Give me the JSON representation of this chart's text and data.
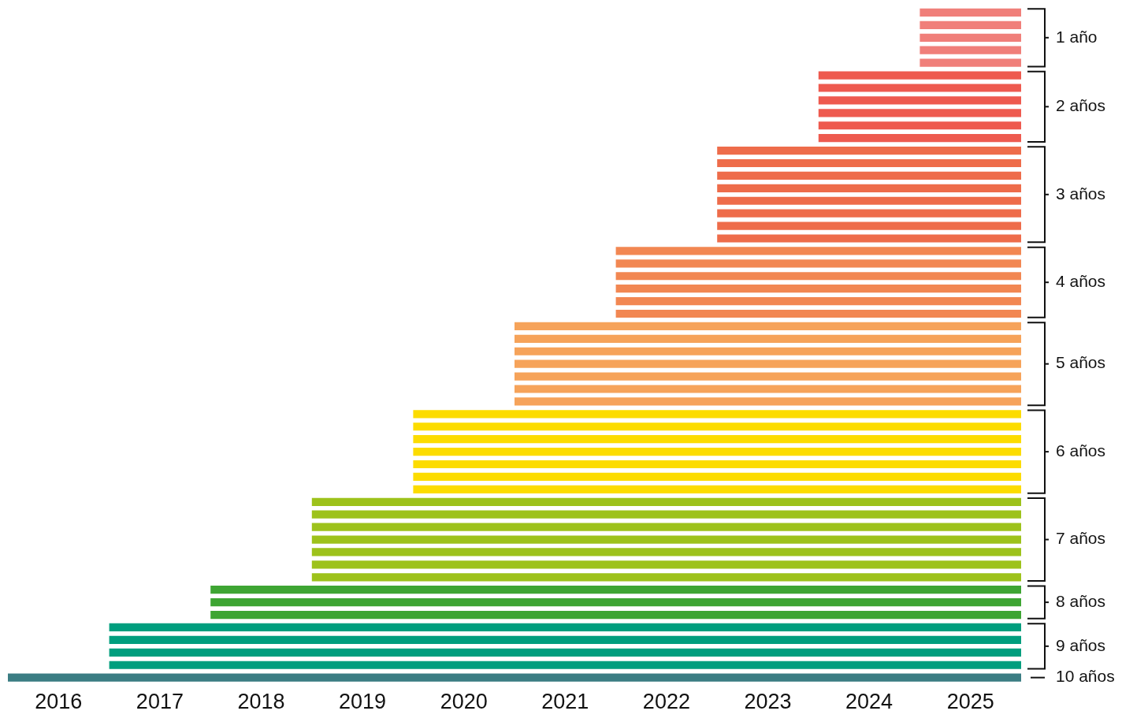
{
  "chart_data": {
    "type": "bar",
    "orientation": "horizontal",
    "tick_labels": "x",
    "legend": false,
    "categories": [
      null,
      null,
      null,
      null,
      null,
      null,
      null,
      null,
      null,
      null,
      null,
      null,
      null,
      null,
      null,
      null,
      null,
      null,
      null,
      null,
      null,
      null,
      null,
      null,
      null,
      null,
      null,
      null,
      null,
      null,
      null,
      null,
      null,
      null,
      null,
      null,
      null,
      null,
      null,
      null,
      null,
      null,
      null,
      null,
      null,
      null,
      null,
      null,
      null,
      null,
      null,
      null,
      null,
      null
    ],
    "base": [
      2025,
      2025,
      2025,
      2025,
      2025,
      2024,
      2024,
      2024,
      2024,
      2024,
      2024,
      2023,
      2023,
      2023,
      2023,
      2023,
      2023,
      2023,
      2023,
      2022,
      2022,
      2022,
      2022,
      2022,
      2022,
      2021,
      2021,
      2021,
      2021,
      2021,
      2021,
      2021,
      2020,
      2020,
      2020,
      2020,
      2020,
      2020,
      2020,
      2019,
      2019,
      2019,
      2019,
      2019,
      2019,
      2019,
      2018,
      2018,
      2018,
      2017,
      2017,
      2017,
      2017,
      2016
    ],
    "values": [
      1,
      1,
      1,
      1,
      1,
      2,
      2,
      2,
      2,
      2,
      2,
      3,
      3,
      3,
      3,
      3,
      3,
      3,
      3,
      4,
      4,
      4,
      4,
      4,
      4,
      5,
      5,
      5,
      5,
      5,
      5,
      5,
      6,
      6,
      6,
      6,
      6,
      6,
      6,
      7,
      7,
      7,
      7,
      7,
      7,
      7,
      8,
      8,
      8,
      9,
      9,
      9,
      9,
      10
    ],
    "colors": [
      "#f07f7a",
      "#f07f7a",
      "#f07f7a",
      "#f07f7a",
      "#f07f7a",
      "#ee5a4f",
      "#ee5a4f",
      "#ee5a4f",
      "#ee5a4f",
      "#ee5a4f",
      "#ee5a4f",
      "#ee6c4a",
      "#ee6c4a",
      "#ee6c4a",
      "#ee6c4a",
      "#ee6c4a",
      "#ee6c4a",
      "#ee6c4a",
      "#ee6c4a",
      "#f28752",
      "#f28752",
      "#f28752",
      "#f28752",
      "#f28752",
      "#f28752",
      "#f6a35a",
      "#f6a35a",
      "#f6a35a",
      "#f6a35a",
      "#f6a35a",
      "#f6a35a",
      "#f6a35a",
      "#fcdc00",
      "#fcdc00",
      "#fcdc00",
      "#fcdc00",
      "#fcdc00",
      "#fcdc00",
      "#fcdc00",
      "#9dc21b",
      "#9dc21b",
      "#9dc21b",
      "#9dc21b",
      "#9dc21b",
      "#9dc21b",
      "#9dc21b",
      "#3ea533",
      "#3ea533",
      "#3ea533",
      "#009e7e",
      "#009e7e",
      "#009e7e",
      "#009e7e",
      "#3b7d83"
    ],
    "xlim": [
      2016,
      2026
    ],
    "xticks": [
      {
        "value": 2016.5,
        "label": "2016"
      },
      {
        "value": 2017.5,
        "label": "2017"
      },
      {
        "value": 2018.5,
        "label": "2018"
      },
      {
        "value": 2019.5,
        "label": "2019"
      },
      {
        "value": 2020.5,
        "label": "2020"
      },
      {
        "value": 2021.5,
        "label": "2021"
      },
      {
        "value": 2022.5,
        "label": "2022"
      },
      {
        "value": 2023.5,
        "label": "2023"
      },
      {
        "value": 2024.5,
        "label": "2024"
      },
      {
        "value": 2025.5,
        "label": "2025"
      }
    ],
    "annotations": [
      "1 año",
      "2 años",
      "3 años",
      "4 años",
      "5 años",
      "6 años",
      "7 años",
      "8 años",
      "9 años",
      "10 años"
    ]
  }
}
